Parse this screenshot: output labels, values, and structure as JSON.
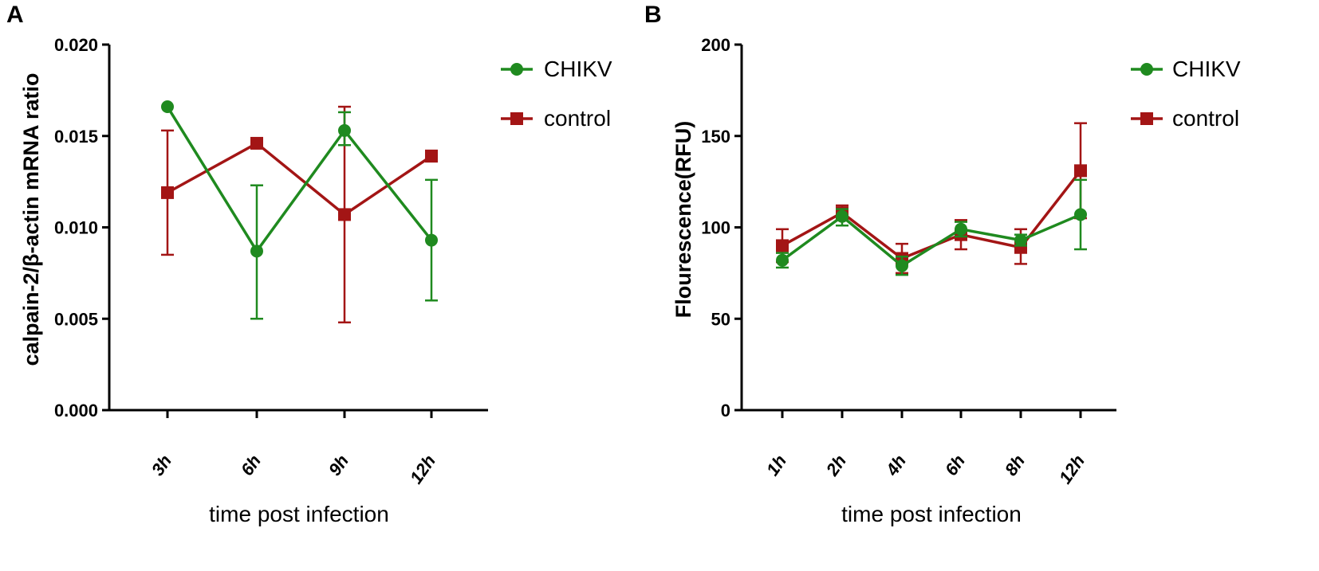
{
  "panels": [
    {
      "letter": "A"
    },
    {
      "letter": "B"
    }
  ],
  "colors": {
    "chikv": "#1f8a1f",
    "control": "#a31515",
    "axis": "#000000"
  },
  "chart_data": [
    {
      "type": "line",
      "panel": "A",
      "title": "",
      "xlabel": "time post infection",
      "ylabel": "calpain-2/β-actin mRNA ratio",
      "categories": [
        "3h",
        "6h",
        "9h",
        "12h"
      ],
      "ylim": [
        0,
        0.02
      ],
      "yticks": [
        "0.000",
        "0.005",
        "0.010",
        "0.015",
        "0.020"
      ],
      "ytick_values": [
        0,
        0.005,
        0.01,
        0.015,
        0.02
      ],
      "legend_position": "top-right",
      "series": [
        {
          "name": "CHIKV",
          "marker": "circle",
          "color": "#1f8a1f",
          "values": [
            0.0166,
            0.0087,
            0.0153,
            0.0093
          ],
          "err_low": [
            0.0166,
            0.005,
            0.0145,
            0.006
          ],
          "err_high": [
            0.0166,
            0.0123,
            0.0163,
            0.0126
          ]
        },
        {
          "name": "control",
          "marker": "square",
          "color": "#a31515",
          "values": [
            0.0119,
            0.0146,
            0.0107,
            0.0139
          ],
          "err_low": [
            0.0085,
            0.0144,
            0.0048,
            0.0136
          ],
          "err_high": [
            0.0153,
            0.0148,
            0.0166,
            0.0142
          ]
        }
      ]
    },
    {
      "type": "line",
      "panel": "B",
      "title": "",
      "xlabel": "time post infection",
      "ylabel": "Flourescence(RFU)",
      "categories": [
        "1h",
        "2h",
        "4h",
        "6h",
        "8h",
        "12h"
      ],
      "ylim": [
        0,
        200
      ],
      "yticks": [
        "0",
        "50",
        "100",
        "150",
        "200"
      ],
      "ytick_values": [
        0,
        50,
        100,
        150,
        200
      ],
      "legend_position": "top-right",
      "series": [
        {
          "name": "CHIKV",
          "marker": "circle",
          "color": "#1f8a1f",
          "values": [
            82,
            106,
            79,
            99,
            93,
            107
          ],
          "err_low": [
            78,
            101,
            74,
            95,
            90,
            88
          ],
          "err_high": [
            86,
            110,
            84,
            103,
            96,
            126
          ]
        },
        {
          "name": "control",
          "marker": "square",
          "color": "#a31515",
          "values": [
            90,
            108,
            83,
            96,
            89,
            131
          ],
          "err_low": [
            81,
            104,
            75,
            88,
            80,
            105
          ],
          "err_high": [
            99,
            112,
            91,
            104,
            99,
            157
          ]
        }
      ]
    }
  ]
}
